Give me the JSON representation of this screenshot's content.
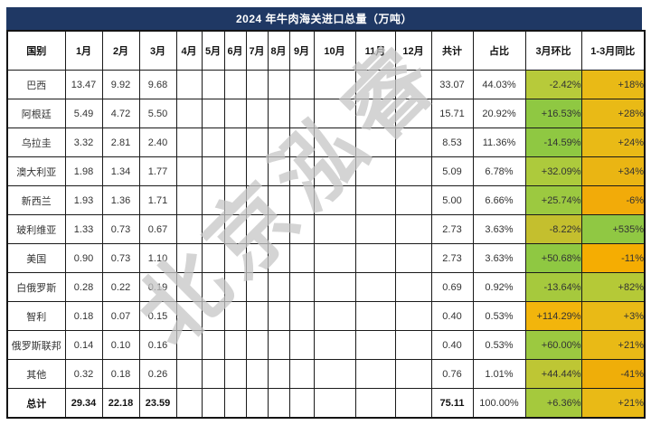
{
  "title": "2024 年牛肉海关进口总量（万吨）",
  "watermark": "北京泓睿",
  "colors": {
    "title_bg": "#1f3864",
    "title_text": "#ffffff",
    "grid_line": "#1a1a1a",
    "green": "#8fc842",
    "yellow_green": "#adca3c",
    "olive": "#c4bf2e",
    "gold": "#e9ba16",
    "orange_gold": "#f2ab09"
  },
  "table": {
    "columns": [
      "国别",
      "1月",
      "2月",
      "3月",
      "4月",
      "5月",
      "6月",
      "7月",
      "8月",
      "9月",
      "10月",
      "11月",
      "12月",
      "共计",
      "占比",
      "3月环比",
      "1-3月同比"
    ],
    "empty_month_count": 9,
    "rows": [
      {
        "country": "巴西",
        "months": [
          "13.47",
          "9.92",
          "9.68"
        ],
        "total": "33.07",
        "share": "44.03%",
        "mom": "-2.42%",
        "mom_color": "#b7ca3a",
        "yoy": "+18%",
        "yoy_color": "#e9ba16",
        "bold": false
      },
      {
        "country": "阿根廷",
        "months": [
          "5.49",
          "4.72",
          "5.50"
        ],
        "total": "15.71",
        "share": "20.92%",
        "mom": "+16.53%",
        "mom_color": "#8fc842",
        "yoy": "+28%",
        "yoy_color": "#e9ba16",
        "bold": false
      },
      {
        "country": "乌拉圭",
        "months": [
          "3.32",
          "2.81",
          "2.40"
        ],
        "total": "8.53",
        "share": "11.36%",
        "mom": "-14.59%",
        "mom_color": "#8fc842",
        "yoy": "+24%",
        "yoy_color": "#e9ba16",
        "bold": false
      },
      {
        "country": "澳大利亚",
        "months": [
          "1.98",
          "1.34",
          "1.77"
        ],
        "total": "5.09",
        "share": "6.78%",
        "mom": "+32.09%",
        "mom_color": "#adca3c",
        "yoy": "+34%",
        "yoy_color": "#eab513",
        "bold": false
      },
      {
        "country": "新西兰",
        "months": [
          "1.93",
          "1.36",
          "1.71"
        ],
        "total": "5.00",
        "share": "6.66%",
        "mom": "+25.74%",
        "mom_color": "#9cc940",
        "yoy": "-6%",
        "yoy_color": "#f2ab09",
        "bold": false
      },
      {
        "country": "玻利维亚",
        "months": [
          "1.33",
          "0.73",
          "0.67"
        ],
        "total": "2.73",
        "share": "3.63%",
        "mom": "-8.22%",
        "mom_color": "#c4bf2e",
        "yoy": "+535%",
        "yoy_color": "#90c843",
        "bold": false
      },
      {
        "country": "美国",
        "months": [
          "0.90",
          "0.73",
          "1.10"
        ],
        "total": "2.73",
        "share": "3.63%",
        "mom": "+50.68%",
        "mom_color": "#8fc842",
        "yoy": "-11%",
        "yoy_color": "#f5ad02",
        "bold": false
      },
      {
        "country": "白俄罗斯",
        "months": [
          "0.28",
          "0.22",
          "0.19"
        ],
        "total": "0.69",
        "share": "0.92%",
        "mom": "-13.64%",
        "mom_color": "#a6c93d",
        "yoy": "+82%",
        "yoy_color": "#b5c937",
        "bold": false
      },
      {
        "country": "智利",
        "months": [
          "0.18",
          "0.07",
          "0.15"
        ],
        "total": "0.40",
        "share": "0.53%",
        "mom": "+114.29%",
        "mom_color": "#f2b50c",
        "yoy": "+3%",
        "yoy_color": "#e9ba16",
        "bold": false
      },
      {
        "country": "俄罗斯联邦",
        "months": [
          "0.14",
          "0.10",
          "0.16"
        ],
        "total": "0.40",
        "share": "0.53%",
        "mom": "+60.00%",
        "mom_color": "#9cc940",
        "yoy": "+21%",
        "yoy_color": "#e9ba16",
        "bold": false
      },
      {
        "country": "其他",
        "months": [
          "0.32",
          "0.18",
          "0.26"
        ],
        "total": "0.76",
        "share": "1.01%",
        "mom": "+44.44%",
        "mom_color": "#bec634",
        "yoy": "-41%",
        "yoy_color": "#efae09",
        "bold": false
      },
      {
        "country": "总计",
        "months": [
          "29.34",
          "22.18",
          "23.59"
        ],
        "total": "75.11",
        "share": "100.00%",
        "mom": "+6.36%",
        "mom_color": "#a5c93d",
        "yoy": "+21%",
        "yoy_color": "#e9ba16",
        "bold": true
      }
    ]
  },
  "chart_data": {
    "type": "table",
    "title": "2024 年牛肉海关进口总量（万吨）",
    "columns": [
      "国别",
      "1月",
      "2月",
      "3月",
      "共计",
      "占比",
      "3月环比",
      "1-3月同比"
    ],
    "rows": [
      [
        "巴西",
        13.47,
        9.92,
        9.68,
        33.07,
        "44.03%",
        "-2.42%",
        "+18%"
      ],
      [
        "阿根廷",
        5.49,
        4.72,
        5.5,
        15.71,
        "20.92%",
        "+16.53%",
        "+28%"
      ],
      [
        "乌拉圭",
        3.32,
        2.81,
        2.4,
        8.53,
        "11.36%",
        "-14.59%",
        "+24%"
      ],
      [
        "澳大利亚",
        1.98,
        1.34,
        1.77,
        5.09,
        "6.78%",
        "+32.09%",
        "+34%"
      ],
      [
        "新西兰",
        1.93,
        1.36,
        1.71,
        5.0,
        "6.66%",
        "+25.74%",
        "-6%"
      ],
      [
        "玻利维亚",
        1.33,
        0.73,
        0.67,
        2.73,
        "3.63%",
        "-8.22%",
        "+535%"
      ],
      [
        "美国",
        0.9,
        0.73,
        1.1,
        2.73,
        "3.63%",
        "+50.68%",
        "-11%"
      ],
      [
        "白俄罗斯",
        0.28,
        0.22,
        0.19,
        0.69,
        "0.92%",
        "-13.64%",
        "+82%"
      ],
      [
        "智利",
        0.18,
        0.07,
        0.15,
        0.4,
        "0.53%",
        "+114.29%",
        "+3%"
      ],
      [
        "俄罗斯联邦",
        0.14,
        0.1,
        0.16,
        0.4,
        "0.53%",
        "+60.00%",
        "+21%"
      ],
      [
        "其他",
        0.32,
        0.18,
        0.26,
        0.76,
        "1.01%",
        "+44.44%",
        "-41%"
      ],
      [
        "总计",
        29.34,
        22.18,
        23.59,
        75.11,
        "100.00%",
        "+6.36%",
        "+21%"
      ]
    ]
  }
}
